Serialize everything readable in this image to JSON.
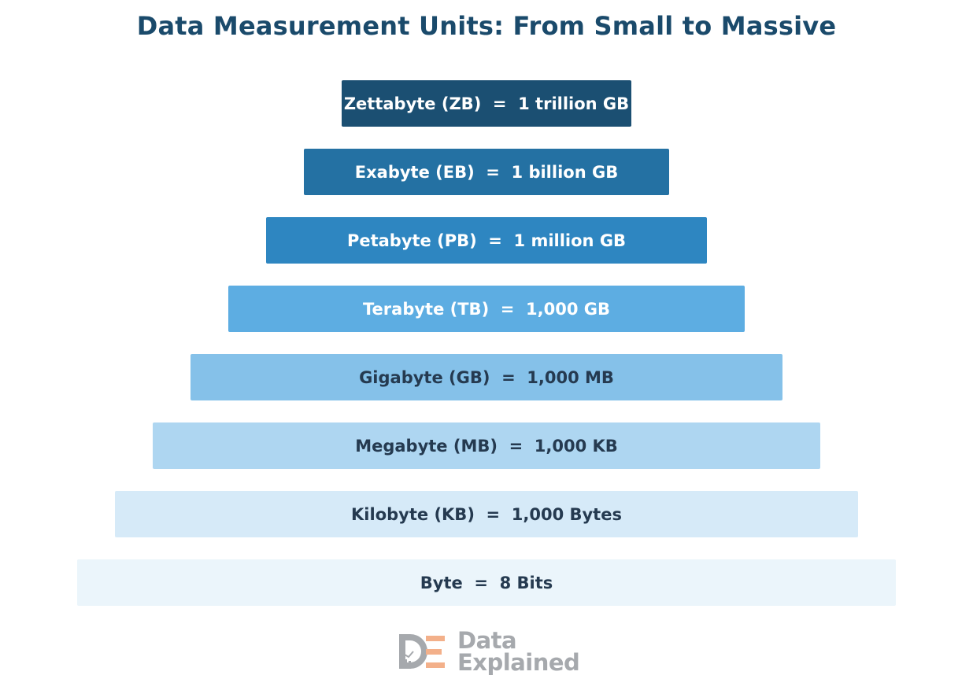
{
  "header": {
    "title": "Data Measurement Units: From Small to Massive"
  },
  "colors": {
    "title": "#1a4a6b",
    "dark_text": "#253a50",
    "light_text": "#ffffff",
    "logo_gray": "#a6a9ad",
    "logo_orange": "#f3b08a"
  },
  "pyramid": {
    "levels": [
      {
        "unit": "Zettabyte (ZB)",
        "equals": "1 trillion GB",
        "label": "Zettabyte (ZB)  =  1 trillion GB",
        "color": "#1b4f72",
        "text_color": "#ffffff"
      },
      {
        "unit": "Exabyte (EB)",
        "equals": "1 billion GB",
        "label": "Exabyte (EB)  =  1 billion GB",
        "color": "#2471a3",
        "text_color": "#ffffff"
      },
      {
        "unit": "Petabyte (PB)",
        "equals": "1 million GB",
        "label": "Petabyte (PB)  =  1 million GB",
        "color": "#2e86c1",
        "text_color": "#ffffff"
      },
      {
        "unit": "Terabyte (TB)",
        "equals": "1,000 GB",
        "label": "Terabyte (TB)  =  1,000 GB",
        "color": "#5dade2",
        "text_color": "#ffffff"
      },
      {
        "unit": "Gigabyte (GB)",
        "equals": "1,000 MB",
        "label": "Gigabyte (GB)  =  1,000 MB",
        "color": "#85c1e9",
        "text_color": "#253a50"
      },
      {
        "unit": "Megabyte (MB)",
        "equals": "1,000 KB",
        "label": "Megabyte (MB)  =  1,000 KB",
        "color": "#aed6f1",
        "text_color": "#253a50"
      },
      {
        "unit": "Kilobyte (KB)",
        "equals": "1,000 Bytes",
        "label": "Kilobyte (KB)  =  1,000 Bytes",
        "color": "#d6eaf8",
        "text_color": "#253a50"
      },
      {
        "unit": "Byte",
        "equals": "8 Bits",
        "label": "Byte  =  8 Bits",
        "color": "#ebf5fb",
        "text_color": "#253a50"
      }
    ]
  },
  "logo": {
    "line1": "Data",
    "line2": "Explained",
    "icon": "data-explained-logo-icon"
  }
}
